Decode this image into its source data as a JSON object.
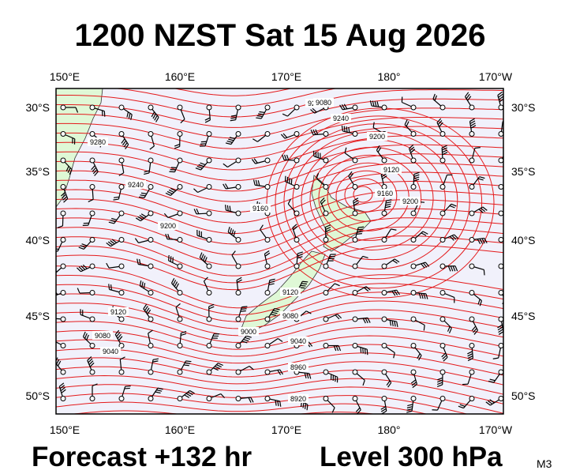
{
  "title": "1200 NZST Sat 15 Aug 2026",
  "footer": {
    "forecast": "Forecast +132 hr",
    "level": "Level 300 hPa",
    "code": "M3"
  },
  "axes": {
    "top": [
      "150°E",
      "160°E",
      "170°E",
      "180°",
      "170°W"
    ],
    "bottom": [
      "150°E",
      "160°E",
      "170°E",
      "180°",
      "170°W"
    ],
    "left": [
      "30°S",
      "35°S",
      "40°S",
      "45°S",
      "50°S"
    ],
    "right": [
      "30°S",
      "35°S",
      "40°S",
      "45°S",
      "50°S"
    ]
  },
  "contour_labels": [
    "9280",
    "9240",
    "9200",
    "9280",
    "9240",
    "9200",
    "9120",
    "9160",
    "9200",
    "9160",
    "9120",
    "9080",
    "9040",
    "9000",
    "8960",
    "8920",
    "9120",
    "9080",
    "9040",
    "9080"
  ]
}
